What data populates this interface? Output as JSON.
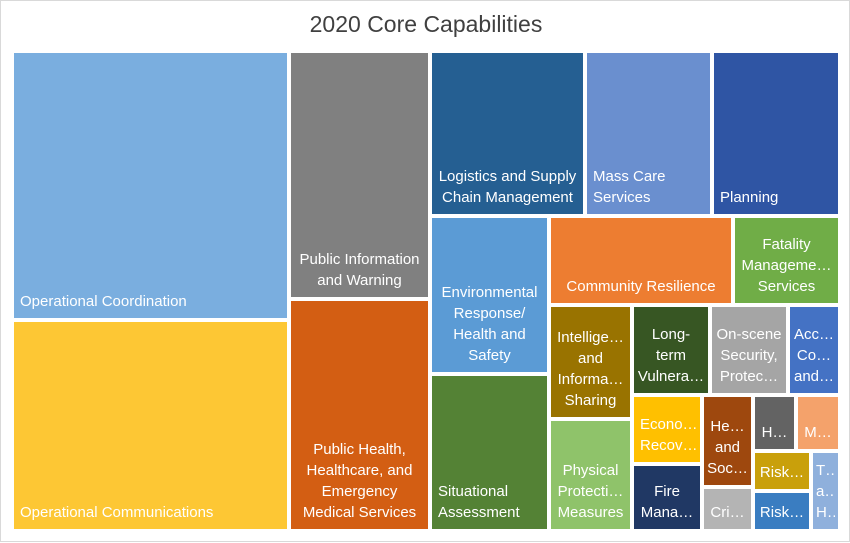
{
  "chart_data": {
    "type": "treemap",
    "title": "2020 Core Capabilities",
    "items": [
      {
        "name": "Operational Coordination",
        "label": "Operational Coordination",
        "color": "#7aaedf",
        "align": "left"
      },
      {
        "name": "Operational Communications",
        "label": "Operational Communications",
        "color": "#fdc734",
        "align": "left"
      },
      {
        "name": "Public Information and Warning",
        "label": "Public Information\nand Warning",
        "color": "#808080",
        "align": "center"
      },
      {
        "name": "Public Health, Healthcare, and Emergency Medical Services",
        "label": "Public Health,\nHealthcare, and\nEmergency\nMedical Services",
        "color": "#d35e13",
        "align": "center"
      },
      {
        "name": "Logistics and Supply Chain Management",
        "label": "Logistics and Supply\nChain Management",
        "color": "#255f92",
        "align": "center"
      },
      {
        "name": "Mass Care Services",
        "label": "Mass Care\nServices",
        "color": "#6a8fcf",
        "align": "left"
      },
      {
        "name": "Planning",
        "label": "Planning",
        "color": "#2f55a4",
        "align": "left"
      },
      {
        "name": "Environmental Response/ Health and Safety",
        "label": "Environmental\nResponse/\nHealth and\nSafety",
        "color": "#5b9bd5",
        "align": "center"
      },
      {
        "name": "Situational Assessment",
        "label": "Situational\nAssessment",
        "color": "#548235",
        "align": "left"
      },
      {
        "name": "Community Resilience",
        "label": "Community Resilience",
        "color": "#ed7d31",
        "align": "center"
      },
      {
        "name": "Fatality Management Services",
        "label": "Fatality\nManageme…\nServices",
        "color": "#70ad47",
        "align": "center"
      },
      {
        "name": "Intelligence and Information Sharing",
        "label": "Intellige…\nand\nInforma…\nSharing",
        "color": "#997300",
        "align": "center"
      },
      {
        "name": "Long-term Vulnerability Reduction",
        "label": "Long-\nterm\nVulnera…",
        "color": "#375623",
        "align": "center"
      },
      {
        "name": "On-scene Security, Protection",
        "label": "On-scene\nSecurity,\nProtec…",
        "color": "#a5a5a5",
        "align": "center"
      },
      {
        "name": "Access Control and Identity Verification",
        "label": "Acc…\nCo…\nand…",
        "color": "#4472c4",
        "align": "center"
      },
      {
        "name": "Physical Protective Measures",
        "label": "Physical\nProtecti…\nMeasures",
        "color": "#8fc36a",
        "align": "center"
      },
      {
        "name": "Economic Recovery",
        "label": "Econo…\nRecov…",
        "color": "#ffc000",
        "align": "left"
      },
      {
        "name": "Health and Social Services",
        "label": "He…\nand\nSoc…",
        "color": "#9e480e",
        "align": "center"
      },
      {
        "name": "Housing",
        "label": "H…",
        "color": "#636363",
        "align": "center"
      },
      {
        "name": "Mitigation",
        "label": "M…",
        "color": "#f4a26b",
        "align": "center"
      },
      {
        "name": "Fire Management and Suppression",
        "label": "Fire\nMana…",
        "color": "#203864",
        "align": "center"
      },
      {
        "name": "Critical Transportation",
        "label": "Cri…",
        "color": "#b4b4b4",
        "align": "center"
      },
      {
        "name": "Risk Management",
        "label": "Risk…",
        "color": "#c9a00b",
        "align": "center"
      },
      {
        "name": "Risk and Disaster Resilience Assessment",
        "label": "Risk…",
        "color": "#3a7dc1",
        "align": "center"
      },
      {
        "name": "Threats and Hazards Identification",
        "label": "T…\na…\nH…",
        "color": "#8fb0dc",
        "align": "center"
      }
    ]
  }
}
